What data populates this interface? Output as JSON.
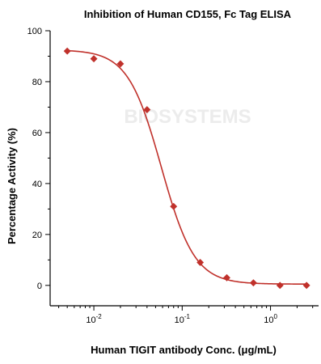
{
  "chart_data": {
    "type": "scatter",
    "title": "Inhibition of Human CD155, Fc Tag ELISA",
    "xlabel": "Human TIGIT antibody Conc. (μg/mL)",
    "ylabel": "Percentage Activity (%)",
    "x_scale": "log10",
    "xlim": [
      0.0032,
      3.5
    ],
    "ylim": [
      -8,
      100
    ],
    "y_ticks": [
      0,
      20,
      40,
      60,
      80,
      100
    ],
    "x_ticks": [
      {
        "value": 0.01,
        "base": "10",
        "exp": "-2"
      },
      {
        "value": 0.1,
        "base": "10",
        "exp": "-1"
      },
      {
        "value": 1,
        "base": "10",
        "exp": "0"
      }
    ],
    "series": [
      {
        "points": [
          {
            "x": 0.005,
            "y": 92
          },
          {
            "x": 0.01,
            "y": 89
          },
          {
            "x": 0.02,
            "y": 87
          },
          {
            "x": 0.04,
            "y": 69
          },
          {
            "x": 0.08,
            "y": 31
          },
          {
            "x": 0.16,
            "y": 9
          },
          {
            "x": 0.32,
            "y": 3
          },
          {
            "x": 0.64,
            "y": 1
          },
          {
            "x": 1.28,
            "y": 0
          },
          {
            "x": 2.56,
            "y": 0
          }
        ],
        "fit_curve": {
          "type": "4PL",
          "top": 92.5,
          "bottom": 0.5,
          "ic50": 0.058,
          "hill": 2.3
        }
      }
    ],
    "watermark": "BIOSYSTEMS",
    "colors": {
      "series": "#c0312b",
      "axis": "#000000",
      "watermark": "#ececec"
    },
    "grid": false,
    "legend": "none"
  }
}
